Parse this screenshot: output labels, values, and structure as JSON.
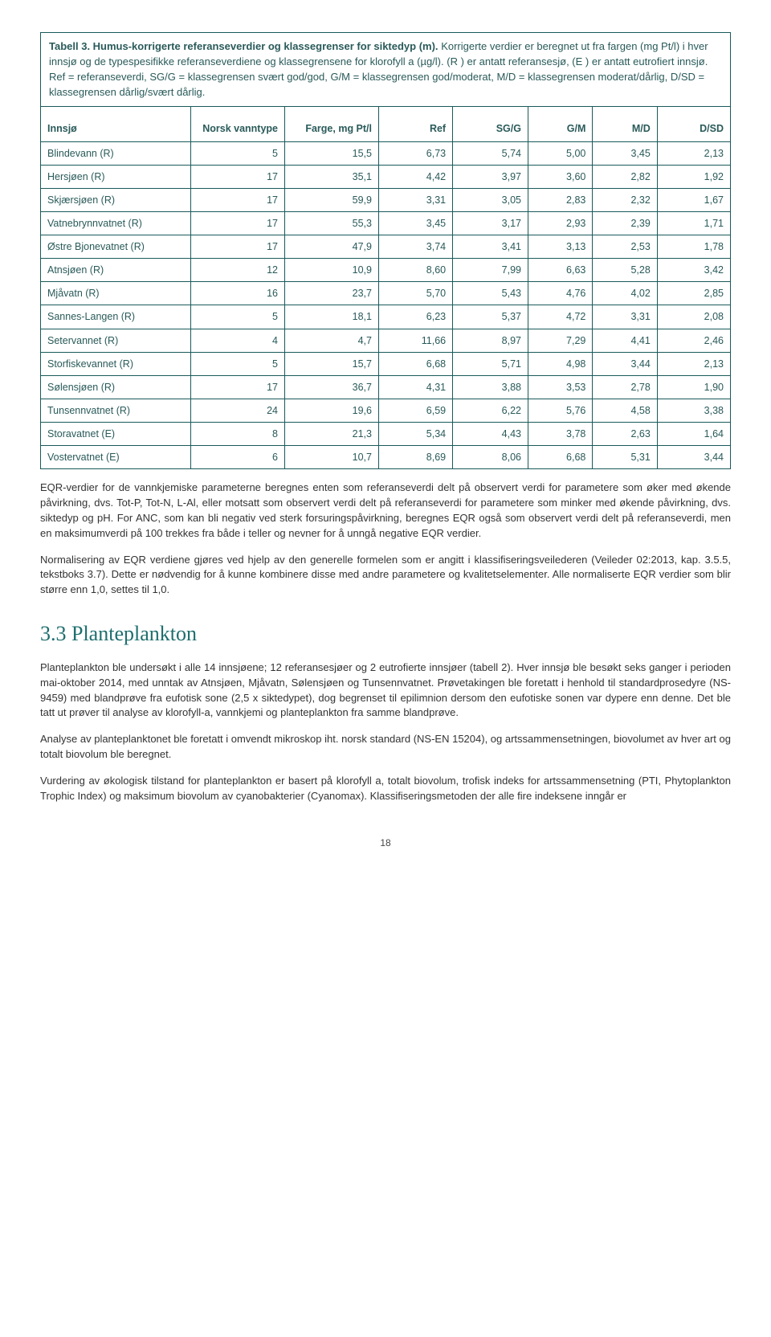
{
  "caption": {
    "title": "Tabell 3. Humus-korrigerte referanseverdier og klassegrenser for siktedyp (m).",
    "body": "Korrigerte verdier er beregnet ut fra fargen (mg Pt/l) i hver innsjø og de typespesifikke referanseverdiene og klassegrensene for klorofyll a (µg/l). (R ) er antatt referansesjø, (E ) er antatt eutrofiert innsjø. Ref = referanseverdi, SG/G = klassegrensen svært god/god, G/M = klassegrensen god/moderat, M/D = klassegrensen moderat/dårlig, D/SD = klassegrensen dårlig/svært dårlig."
  },
  "table": {
    "columns": [
      "Innsjø",
      "Norsk vanntype",
      "Farge, mg Pt/l",
      "Ref",
      "SG/G",
      "G/M",
      "M/D",
      "D/SD"
    ],
    "rows": [
      [
        "Blindevann (R)",
        "5",
        "15,5",
        "6,73",
        "5,74",
        "5,00",
        "3,45",
        "2,13"
      ],
      [
        "Hersjøen (R)",
        "17",
        "35,1",
        "4,42",
        "3,97",
        "3,60",
        "2,82",
        "1,92"
      ],
      [
        "Skjærsjøen (R)",
        "17",
        "59,9",
        "3,31",
        "3,05",
        "2,83",
        "2,32",
        "1,67"
      ],
      [
        "Vatnebrynnvatnet (R)",
        "17",
        "55,3",
        "3,45",
        "3,17",
        "2,93",
        "2,39",
        "1,71"
      ],
      [
        "Østre Bjonevatnet (R)",
        "17",
        "47,9",
        "3,74",
        "3,41",
        "3,13",
        "2,53",
        "1,78"
      ],
      [
        "Atnsjøen (R)",
        "12",
        "10,9",
        "8,60",
        "7,99",
        "6,63",
        "5,28",
        "3,42"
      ],
      [
        "Mjåvatn (R)",
        "16",
        "23,7",
        "5,70",
        "5,43",
        "4,76",
        "4,02",
        "2,85"
      ],
      [
        "Sannes-Langen (R)",
        "5",
        "18,1",
        "6,23",
        "5,37",
        "4,72",
        "3,31",
        "2,08"
      ],
      [
        "Setervannet (R)",
        "4",
        "4,7",
        "11,66",
        "8,97",
        "7,29",
        "4,41",
        "2,46"
      ],
      [
        "Storfiskevannet (R)",
        "5",
        "15,7",
        "6,68",
        "5,71",
        "4,98",
        "3,44",
        "2,13"
      ],
      [
        "Sølensjøen (R)",
        "17",
        "36,7",
        "4,31",
        "3,88",
        "3,53",
        "2,78",
        "1,90"
      ],
      [
        "Tunsennvatnet (R)",
        "24",
        "19,6",
        "6,59",
        "6,22",
        "5,76",
        "4,58",
        "3,38"
      ],
      [
        "Storavatnet (E)",
        "8",
        "21,3",
        "5,34",
        "4,43",
        "3,78",
        "2,63",
        "1,64"
      ],
      [
        "Vostervatnet (E)",
        "6",
        "10,7",
        "8,69",
        "8,06",
        "6,68",
        "5,31",
        "3,44"
      ]
    ],
    "border_color": "#1a5a5a",
    "text_color": "#2a5a5a",
    "font_size": 12.5
  },
  "paragraphs": {
    "p1": "EQR-verdier for de vannkjemiske parameterne beregnes enten som referanseverdi delt på observert verdi for parametere som øker med økende påvirkning, dvs. Tot-P, Tot-N, L-Al, eller motsatt som observert verdi delt på referanseverdi for parametere som minker med økende påvirkning, dvs. siktedyp og pH. For ANC, som kan bli negativ ved sterk forsuringspåvirkning, beregnes EQR også som observert verdi delt på referanseverdi, men en maksimumverdi på 100 trekkes fra både i teller og nevner for å unngå negative EQR verdier.",
    "p2": "Normalisering av EQR verdiene gjøres ved hjelp av den generelle formelen som er angitt i klassifiseringsveilederen (Veileder 02:2013, kap. 3.5.5, tekstboks 3.7). Dette er nødvendig for å kunne kombinere disse med andre parametere og kvalitetselementer. Alle normaliserte EQR verdier som blir større enn 1,0, settes til 1,0.",
    "section_title": "3.3 Planteplankton",
    "p3": "Planteplankton ble undersøkt i alle 14 innsjøene; 12 referansesjøer og 2 eutrofierte innsjøer (tabell 2). Hver innsjø ble besøkt seks ganger i perioden mai-oktober 2014, med unntak av Atnsjøen, Mjåvatn, Sølensjøen og Tunsennvatnet. Prøvetakingen ble foretatt i henhold til standardprosedyre (NS-9459) med blandprøve fra eufotisk sone (2,5 x siktedypet), dog begrenset til epilimnion dersom den eufotiske sonen var dypere enn denne. Det ble tatt ut prøver til analyse av klorofyll-a, vannkjemi og planteplankton fra samme blandprøve.",
    "p4": "Analyse av planteplanktonet ble foretatt i omvendt mikroskop iht. norsk standard (NS-EN 15204), og artssammensetningen, biovolumet av hver art og totalt biovolum ble beregnet.",
    "p5": "Vurdering av økologisk tilstand for planteplankton er basert på klorofyll a, totalt biovolum, trofisk indeks for artssammensetning (PTI, Phytoplankton Trophic Index) og maksimum biovolum av cyanobakterier (Cyanomax). Klassifiseringsmetoden der alle fire indeksene inngår er"
  },
  "page_number": "18",
  "styling": {
    "heading_color": "#1e6e6e",
    "body_font": "Verdana",
    "heading_font": "Georgia",
    "background_color": "#ffffff"
  }
}
